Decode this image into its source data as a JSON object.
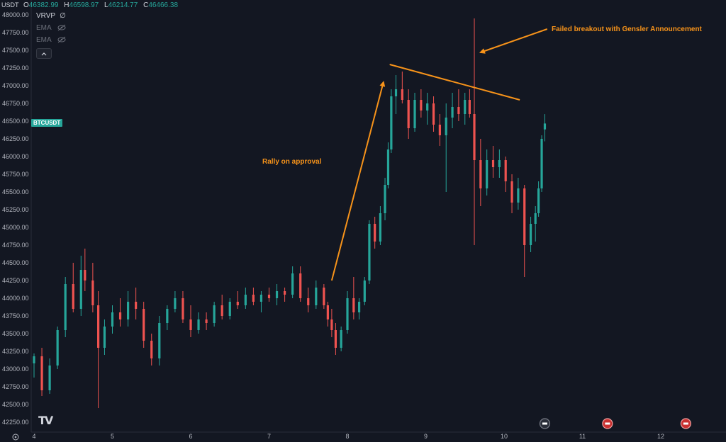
{
  "header": {
    "pair_fragment": "USDT",
    "ohlc": [
      {
        "key": "O",
        "value": "46382.99"
      },
      {
        "key": "H",
        "value": "46598.97"
      },
      {
        "key": "L",
        "value": "46214.77"
      },
      {
        "key": "C",
        "value": "46466.38"
      }
    ],
    "indicators": [
      {
        "name": "VRVP",
        "extra": "∅"
      },
      {
        "name": "EMA",
        "hidden": true
      },
      {
        "name": "EMA",
        "hidden": true
      }
    ],
    "symbol_badge": "BTCUSDT"
  },
  "annotations": {
    "rally": "Rally on approval",
    "failed": "Failed breakout with Gensler Announcement"
  },
  "colors": {
    "background": "#131722",
    "up": "#26a69a",
    "down": "#ef5350",
    "annotation": "#f7931a",
    "axis_text": "#b2b5be"
  },
  "chart_data": {
    "type": "candlestick",
    "title": "",
    "ylim": [
      42150,
      48050
    ],
    "y_ticks": [
      42250,
      42500,
      42750,
      43000,
      43250,
      43500,
      43750,
      44000,
      44250,
      44500,
      44750,
      45000,
      45250,
      45500,
      45750,
      46000,
      46250,
      46500,
      46750,
      47000,
      47250,
      47500,
      47750,
      48000
    ],
    "x_ticks": [
      "4",
      "5",
      "6",
      "7",
      "8",
      "9",
      "10",
      "11",
      "12"
    ],
    "grid": false,
    "candle_interval_hours": 1,
    "candles": [
      {
        "day": 4.0,
        "o": 43080,
        "h": 43220,
        "l": 42880,
        "c": 43180
      },
      {
        "day": 4.1,
        "o": 43180,
        "h": 43300,
        "l": 42620,
        "c": 42700
      },
      {
        "day": 4.2,
        "o": 42700,
        "h": 43150,
        "l": 42650,
        "c": 43050
      },
      {
        "day": 4.3,
        "o": 43050,
        "h": 43600,
        "l": 43000,
        "c": 43550
      },
      {
        "day": 4.4,
        "o": 43550,
        "h": 44300,
        "l": 43450,
        "c": 44200
      },
      {
        "day": 4.5,
        "o": 44200,
        "h": 44500,
        "l": 43800,
        "c": 43850
      },
      {
        "day": 4.6,
        "o": 43850,
        "h": 44600,
        "l": 43750,
        "c": 44400
      },
      {
        "day": 4.65,
        "o": 44400,
        "h": 44700,
        "l": 44100,
        "c": 44250
      },
      {
        "day": 4.75,
        "o": 44250,
        "h": 44500,
        "l": 43800,
        "c": 43900
      },
      {
        "day": 4.82,
        "o": 43900,
        "h": 44100,
        "l": 42450,
        "c": 43300
      },
      {
        "day": 4.9,
        "o": 43300,
        "h": 43700,
        "l": 43200,
        "c": 43600
      },
      {
        "day": 5.0,
        "o": 43600,
        "h": 43900,
        "l": 43500,
        "c": 43800
      },
      {
        "day": 5.1,
        "o": 43800,
        "h": 44000,
        "l": 43600,
        "c": 43700
      },
      {
        "day": 5.2,
        "o": 43700,
        "h": 44100,
        "l": 43600,
        "c": 43950
      },
      {
        "day": 5.3,
        "o": 43950,
        "h": 44150,
        "l": 43700,
        "c": 43850
      },
      {
        "day": 5.4,
        "o": 43850,
        "h": 43950,
        "l": 43300,
        "c": 43400
      },
      {
        "day": 5.5,
        "o": 43400,
        "h": 43500,
        "l": 43050,
        "c": 43150
      },
      {
        "day": 5.6,
        "o": 43150,
        "h": 43750,
        "l": 43050,
        "c": 43650
      },
      {
        "day": 5.7,
        "o": 43650,
        "h": 43900,
        "l": 43550,
        "c": 43850
      },
      {
        "day": 5.8,
        "o": 43850,
        "h": 44100,
        "l": 43800,
        "c": 44000
      },
      {
        "day": 5.9,
        "o": 44000,
        "h": 44100,
        "l": 43650,
        "c": 43700
      },
      {
        "day": 6.0,
        "o": 43700,
        "h": 43900,
        "l": 43450,
        "c": 43550
      },
      {
        "day": 6.1,
        "o": 43550,
        "h": 43800,
        "l": 43500,
        "c": 43700
      },
      {
        "day": 6.2,
        "o": 43700,
        "h": 43800,
        "l": 43550,
        "c": 43650
      },
      {
        "day": 6.3,
        "o": 43650,
        "h": 43950,
        "l": 43600,
        "c": 43900
      },
      {
        "day": 6.4,
        "o": 43900,
        "h": 44050,
        "l": 43700,
        "c": 43750
      },
      {
        "day": 6.5,
        "o": 43750,
        "h": 44000,
        "l": 43700,
        "c": 43950
      },
      {
        "day": 6.6,
        "o": 43950,
        "h": 44100,
        "l": 43850,
        "c": 43900
      },
      {
        "day": 6.7,
        "o": 43900,
        "h": 44150,
        "l": 43850,
        "c": 44050
      },
      {
        "day": 6.8,
        "o": 44050,
        "h": 44150,
        "l": 43900,
        "c": 43950
      },
      {
        "day": 6.9,
        "o": 43950,
        "h": 44100,
        "l": 43800,
        "c": 44050
      },
      {
        "day": 7.0,
        "o": 44050,
        "h": 44150,
        "l": 43950,
        "c": 44000
      },
      {
        "day": 7.1,
        "o": 44000,
        "h": 44200,
        "l": 43900,
        "c": 44100
      },
      {
        "day": 7.2,
        "o": 44100,
        "h": 44150,
        "l": 43950,
        "c": 44050
      },
      {
        "day": 7.3,
        "o": 44050,
        "h": 44450,
        "l": 44000,
        "c": 44350
      },
      {
        "day": 7.4,
        "o": 44350,
        "h": 44450,
        "l": 43950,
        "c": 44000
      },
      {
        "day": 7.5,
        "o": 44000,
        "h": 44150,
        "l": 43800,
        "c": 43900
      },
      {
        "day": 7.6,
        "o": 43900,
        "h": 44250,
        "l": 43850,
        "c": 44150
      },
      {
        "day": 7.7,
        "o": 44150,
        "h": 44200,
        "l": 43850,
        "c": 43900
      },
      {
        "day": 7.75,
        "o": 43900,
        "h": 43950,
        "l": 43600,
        "c": 43700
      },
      {
        "day": 7.8,
        "o": 43700,
        "h": 43850,
        "l": 43450,
        "c": 43550
      },
      {
        "day": 7.85,
        "o": 43550,
        "h": 43650,
        "l": 43200,
        "c": 43300
      },
      {
        "day": 7.92,
        "o": 43300,
        "h": 43600,
        "l": 43250,
        "c": 43550
      },
      {
        "day": 8.0,
        "o": 43550,
        "h": 44100,
        "l": 43500,
        "c": 44000
      },
      {
        "day": 8.08,
        "o": 44000,
        "h": 44300,
        "l": 43700,
        "c": 43800
      },
      {
        "day": 8.15,
        "o": 43800,
        "h": 44000,
        "l": 43700,
        "c": 43950
      },
      {
        "day": 8.22,
        "o": 43950,
        "h": 44300,
        "l": 43900,
        "c": 44250
      },
      {
        "day": 8.28,
        "o": 44250,
        "h": 45100,
        "l": 44200,
        "c": 45050
      },
      {
        "day": 8.35,
        "o": 45050,
        "h": 45150,
        "l": 44700,
        "c": 44800
      },
      {
        "day": 8.42,
        "o": 44800,
        "h": 45300,
        "l": 44750,
        "c": 45200
      },
      {
        "day": 8.48,
        "o": 45200,
        "h": 45700,
        "l": 45100,
        "c": 45600
      },
      {
        "day": 8.52,
        "o": 45600,
        "h": 46200,
        "l": 45550,
        "c": 46100
      },
      {
        "day": 8.56,
        "o": 46100,
        "h": 46950,
        "l": 46050,
        "c": 46850
      },
      {
        "day": 8.62,
        "o": 46850,
        "h": 47150,
        "l": 46600,
        "c": 46950
      },
      {
        "day": 8.7,
        "o": 46950,
        "h": 47200,
        "l": 46750,
        "c": 46800
      },
      {
        "day": 8.78,
        "o": 46800,
        "h": 46950,
        "l": 46250,
        "c": 46400
      },
      {
        "day": 8.86,
        "o": 46400,
        "h": 46900,
        "l": 46350,
        "c": 46800
      },
      {
        "day": 8.94,
        "o": 46800,
        "h": 46950,
        "l": 46550,
        "c": 46650
      },
      {
        "day": 9.02,
        "o": 46650,
        "h": 46900,
        "l": 46450,
        "c": 46750
      },
      {
        "day": 9.1,
        "o": 46750,
        "h": 46850,
        "l": 46350,
        "c": 46450
      },
      {
        "day": 9.18,
        "o": 46450,
        "h": 46600,
        "l": 46150,
        "c": 46300
      },
      {
        "day": 9.26,
        "o": 46300,
        "h": 46750,
        "l": 45500,
        "c": 46550
      },
      {
        "day": 9.34,
        "o": 46550,
        "h": 46900,
        "l": 46400,
        "c": 46700
      },
      {
        "day": 9.42,
        "o": 46700,
        "h": 46950,
        "l": 46500,
        "c": 46600
      },
      {
        "day": 9.5,
        "o": 46600,
        "h": 46900,
        "l": 46450,
        "c": 46800
      },
      {
        "day": 9.56,
        "o": 46800,
        "h": 46950,
        "l": 46550,
        "c": 46600
      },
      {
        "day": 9.62,
        "o": 46600,
        "h": 47950,
        "l": 44750,
        "c": 45950
      },
      {
        "day": 9.7,
        "o": 45950,
        "h": 46250,
        "l": 45300,
        "c": 45550
      },
      {
        "day": 9.78,
        "o": 45550,
        "h": 46100,
        "l": 45450,
        "c": 45950
      },
      {
        "day": 9.86,
        "o": 45950,
        "h": 46150,
        "l": 45700,
        "c": 45850
      },
      {
        "day": 9.94,
        "o": 45850,
        "h": 46100,
        "l": 45700,
        "c": 45950
      },
      {
        "day": 10.02,
        "o": 45950,
        "h": 46000,
        "l": 45500,
        "c": 45650
      },
      {
        "day": 10.1,
        "o": 45650,
        "h": 45750,
        "l": 45200,
        "c": 45350
      },
      {
        "day": 10.18,
        "o": 45350,
        "h": 45700,
        "l": 45250,
        "c": 45550
      },
      {
        "day": 10.26,
        "o": 45550,
        "h": 45600,
        "l": 44300,
        "c": 44750
      },
      {
        "day": 10.34,
        "o": 44750,
        "h": 45150,
        "l": 44650,
        "c": 45050
      },
      {
        "day": 10.4,
        "o": 45050,
        "h": 45300,
        "l": 44800,
        "c": 45200
      },
      {
        "day": 10.44,
        "o": 45200,
        "h": 45650,
        "l": 45150,
        "c": 45550
      },
      {
        "day": 10.48,
        "o": 45550,
        "h": 46300,
        "l": 45500,
        "c": 46250
      },
      {
        "day": 10.52,
        "o": 46382.99,
        "h": 46598.97,
        "l": 46214.77,
        "c": 46466.38
      }
    ],
    "trendlines": [
      {
        "label": "resistance",
        "x1": 8.54,
        "y1": 47300,
        "x2": 10.2,
        "y2": 46800
      },
      {
        "label": "rally-arrow",
        "x1": 7.8,
        "y1": 44250,
        "x2": 8.46,
        "y2": 47050
      },
      {
        "label": "failed-arrow",
        "x1": 10.55,
        "y1": 47800,
        "x2": 9.7,
        "y2": 47470
      }
    ]
  }
}
